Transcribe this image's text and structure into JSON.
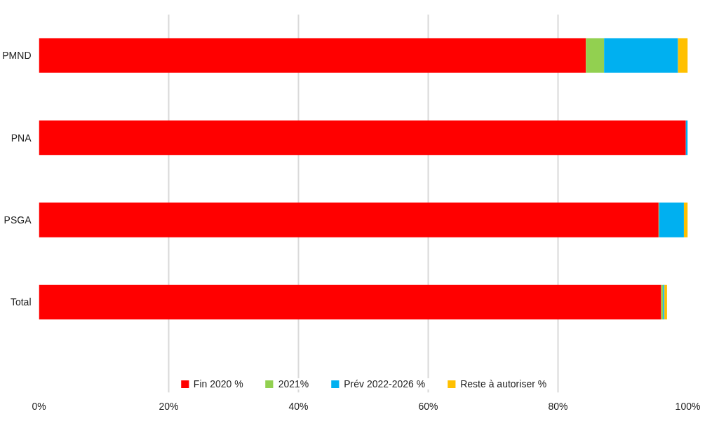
{
  "chart_data": {
    "type": "bar",
    "orientation": "horizontal",
    "stacked": true,
    "categories": [
      "PMND",
      "PNA",
      "PSGA",
      "Total"
    ],
    "series": [
      {
        "name": "Fin 2020 %",
        "color": "#ff0000",
        "values": [
          84.3,
          99.7,
          95.5,
          95.9
        ]
      },
      {
        "name": "2021%",
        "color": "#92d050",
        "values": [
          2.8,
          0,
          0.1,
          0.3
        ]
      },
      {
        "name": "Prév 2022-2026 %",
        "color": "#00b0f0",
        "values": [
          11.4,
          0.3,
          3.8,
          0.2
        ]
      },
      {
        "name": "Reste à autoriser %",
        "color": "#ffc000",
        "values": [
          1.5,
          0,
          0.7,
          0.4
        ]
      }
    ],
    "xlim": [
      0,
      100
    ],
    "xticks": [
      {
        "value": 0,
        "label": "0%"
      },
      {
        "value": 20,
        "label": "20%"
      },
      {
        "value": 40,
        "label": "40%"
      },
      {
        "value": 60,
        "label": "60%"
      },
      {
        "value": 80,
        "label": "80%"
      },
      {
        "value": 100,
        "label": "100%"
      }
    ],
    "grid": "x",
    "legend": "bottom"
  }
}
